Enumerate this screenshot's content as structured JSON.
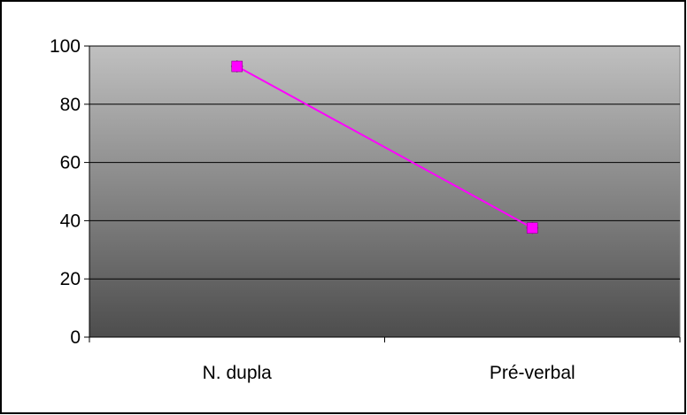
{
  "chart_data": {
    "type": "line",
    "title": "",
    "xlabel": "",
    "ylabel": "",
    "categories": [
      "N. dupla",
      "Pré-verbal"
    ],
    "series": [
      {
        "values": [
          93,
          37.5
        ],
        "color": "#ff00ff",
        "marker_color": "#ff00ff",
        "marker_outline": "#800080"
      }
    ],
    "ylim": [
      0,
      100
    ],
    "yticks": [
      "0",
      "20",
      "40",
      "60",
      "80",
      "100"
    ],
    "grid": true,
    "legend": "none",
    "plot_background": {
      "top": "#c0c0c0",
      "bottom": "#4d4d4d"
    }
  }
}
